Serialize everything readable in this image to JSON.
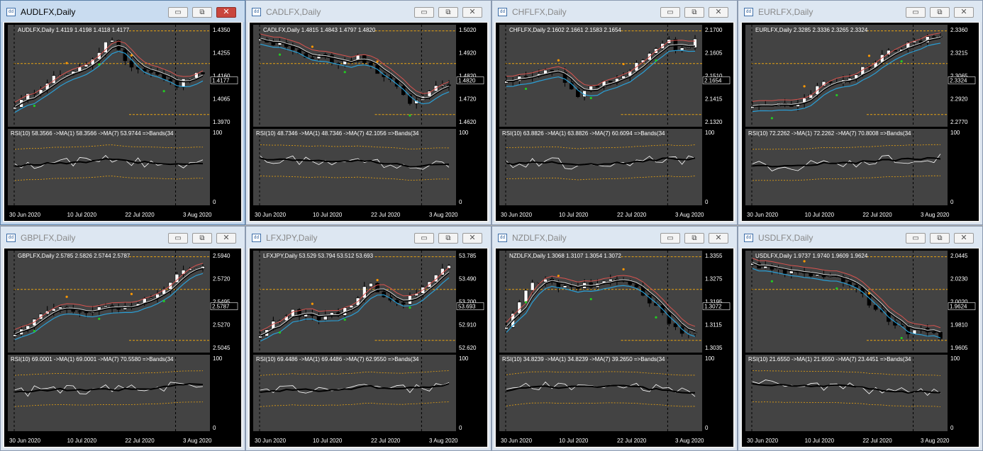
{
  "colors": {
    "bg": "#000000",
    "plot": "#434343",
    "price_bull": "#ffffff",
    "price_bear": "#000000",
    "level": "#e8a312",
    "bb_cyan": "#2a9fd6",
    "bb_red": "#d9534f",
    "rsi_line": "#ffffff",
    "rsi_ma": "#000000",
    "grid_text": "#ffffff",
    "up_dot": "#ff9900",
    "down_dot": "#22cc22"
  },
  "dates": [
    "30 Jun 2020",
    "10 Jul 2020",
    "22 Jul 2020",
    "3 Aug 2020"
  ],
  "rsi_axis": [
    "100",
    "0"
  ],
  "windows": [
    {
      "title": "AUDLFX,Daily",
      "active": true,
      "header": "AUDLFX,Daily  1.4119 1.4198 1.4118 1.4177",
      "prices": [
        "1.4350",
        "1.4255",
        "1.4160",
        "1.4065",
        "1.3970"
      ],
      "current": "1.4177",
      "rsi_header": "RSI(10) 58.3566  ->MA(1) 58.3566  ->MA(7) 53.9744  =>Bands(34"
    },
    {
      "title": "CADLFX,Daily",
      "active": false,
      "header": "CADLFX,Daily  1.4815 1.4843 1.4797 1.4820",
      "prices": [
        "1.5020",
        "1.4920",
        "1.4820",
        "1.4720",
        "1.4620"
      ],
      "current": "1.4820",
      "rsi_header": "RSI(10) 48.7346  ->MA(1) 48.7346  ->MA(7) 42.1056  =>Bands(34"
    },
    {
      "title": "CHFLFX,Daily",
      "active": false,
      "header": "CHFLFX,Daily  2.1602 2.1661 2.1583 2.1654",
      "prices": [
        "2.1700",
        "2.1605",
        "2.1510",
        "2.1415",
        "2.1320"
      ],
      "current": "2.1654",
      "rsi_header": "RSI(10) 63.8826  ->MA(1) 63.8826  ->MA(7) 60.6094  =>Bands(34"
    },
    {
      "title": "EURLFX,Daily",
      "active": false,
      "header": "EURLFX,Daily  2.3285 2.3336 2.3265 2.3324",
      "prices": [
        "2.3360",
        "2.3215",
        "2.3065",
        "2.2920",
        "2.2770"
      ],
      "current": "2.3324",
      "rsi_header": "RSI(10) 72.2262  ->MA(1) 72.2262  ->MA(7) 70.8008  =>Bands(34"
    },
    {
      "title": "GBPLFX,Daily",
      "active": false,
      "header": "GBPLFX,Daily  2.5785 2.5826 2.5744 2.5787",
      "prices": [
        "2.5940",
        "2.5720",
        "2.5495",
        "2.5270",
        "2.5045"
      ],
      "current": "2.5787",
      "rsi_header": "RSI(10) 69.0001  ->MA(1) 69.0001  ->MA(7) 70.5580  =>Bands(34"
    },
    {
      "title": "LFXJPY,Daily",
      "active": false,
      "header": "LFXJPY,Daily  53.529 53.794 53.512 53.693",
      "prices": [
        "53.785",
        "53.490",
        "53.200",
        "52.910",
        "52.620"
      ],
      "current": "53.693",
      "rsi_header": "RSI(10) 69.4486  ->MA(1) 69.4486  ->MA(7) 62.9550  =>Bands(34"
    },
    {
      "title": "NZDLFX,Daily",
      "active": false,
      "header": "NZDLFX,Daily  1.3068 1.3107 1.3054 1.3072",
      "prices": [
        "1.3355",
        "1.3275",
        "1.3195",
        "1.3115",
        "1.3035"
      ],
      "current": "1.3072",
      "rsi_header": "RSI(10) 34.8239  ->MA(1) 34.8239  ->MA(7) 39.2650  =>Bands(34"
    },
    {
      "title": "USDLFX,Daily",
      "active": false,
      "header": "USDLFX,Daily  1.9737 1.9740 1.9609 1.9624",
      "prices": [
        "2.0445",
        "2.0230",
        "2.0020",
        "1.9810",
        "1.9605"
      ],
      "current": "1.9624",
      "rsi_header": "RSI(10) 21.6550  ->MA(1) 21.6550  ->MA(7) 23.4451  =>Bands(34"
    }
  ],
  "buttons": {
    "minimize": "▭",
    "restore": "⧉",
    "close": "✕"
  }
}
